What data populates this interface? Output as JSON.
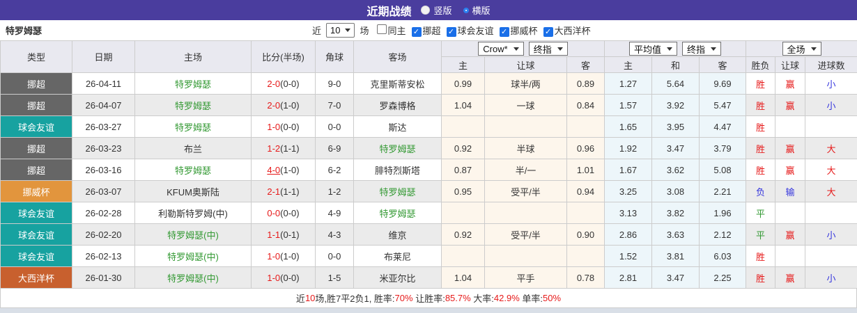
{
  "title_bar": {
    "title": "近期战绩",
    "radio_vertical": "竖版",
    "radio_horizontal": "横版",
    "selected": "横版"
  },
  "filter_bar": {
    "team": "特罗姆瑟",
    "near_label": "近",
    "matches_value": "10",
    "matches_label": "场",
    "checkboxes": [
      {
        "label": "同主",
        "checked": false
      },
      {
        "label": "挪超",
        "checked": true
      },
      {
        "label": "球会友谊",
        "checked": true
      },
      {
        "label": "挪威杯",
        "checked": true
      },
      {
        "label": "大西洋杯",
        "checked": true
      }
    ]
  },
  "colors": {
    "accent_purple": "#4a3d9e",
    "checkbox_blue": "#1a6fe8",
    "win_red": "#e61919",
    "lose_blue": "#3434dd",
    "draw_green": "#339933",
    "league_colors": {
      "挪超": "#666666",
      "球会友谊": "#17a2a0",
      "挪威杯": "#e2953d",
      "大西洋杯": "#c8602e"
    }
  },
  "table": {
    "left_headers": [
      "类型",
      "日期",
      "主场",
      "比分(半场)",
      "角球",
      "客场"
    ],
    "selects": {
      "crow": "Crow*",
      "crow_ref": "终指",
      "avg": "平均值",
      "avg_ref": "终指",
      "scope": "全场"
    },
    "group1_cols": [
      "主",
      "让球",
      "客"
    ],
    "group2_cols": [
      "主",
      "和",
      "客"
    ],
    "group3_cols": [
      "胜负",
      "让球",
      "进球数"
    ],
    "rows": [
      {
        "league": "挪超",
        "date": "26-04-11",
        "home": "特罗姆瑟",
        "home_highlight": true,
        "score": "2-0",
        "half": "(0-0)",
        "score_underline": false,
        "corners": "9-0",
        "away": "克里斯蒂安松",
        "away_highlight": false,
        "odds_home": "0.99",
        "odds_line": "球半/两",
        "odds_away": "0.89",
        "avg_home": "1.27",
        "avg_draw": "5.64",
        "avg_away": "9.69",
        "result": "胜",
        "handicap_result": "赢",
        "goals_result": "小"
      },
      {
        "league": "挪超",
        "date": "26-04-07",
        "home": "特罗姆瑟",
        "home_highlight": true,
        "score": "2-0",
        "half": "(1-0)",
        "score_underline": false,
        "corners": "7-0",
        "away": "罗森博格",
        "away_highlight": false,
        "odds_home": "1.04",
        "odds_line": "一球",
        "odds_away": "0.84",
        "avg_home": "1.57",
        "avg_draw": "3.92",
        "avg_away": "5.47",
        "result": "胜",
        "handicap_result": "赢",
        "goals_result": "小"
      },
      {
        "league": "球会友谊",
        "date": "26-03-27",
        "home": "特罗姆瑟",
        "home_highlight": true,
        "score": "1-0",
        "half": "(0-0)",
        "score_underline": false,
        "corners": "0-0",
        "away": "斯达",
        "away_highlight": false,
        "odds_home": "",
        "odds_line": "",
        "odds_away": "",
        "avg_home": "1.65",
        "avg_draw": "3.95",
        "avg_away": "4.47",
        "result": "胜",
        "handicap_result": "",
        "goals_result": ""
      },
      {
        "league": "挪超",
        "date": "26-03-23",
        "home": "布兰",
        "home_highlight": false,
        "score": "1-2",
        "half": "(1-1)",
        "score_underline": false,
        "corners": "6-9",
        "away": "特罗姆瑟",
        "away_highlight": true,
        "odds_home": "0.92",
        "odds_line": "半球",
        "odds_away": "0.96",
        "avg_home": "1.92",
        "avg_draw": "3.47",
        "avg_away": "3.79",
        "result": "胜",
        "handicap_result": "赢",
        "goals_result": "大"
      },
      {
        "league": "挪超",
        "date": "26-03-16",
        "home": "特罗姆瑟",
        "home_highlight": true,
        "score": "4-0",
        "half": "(1-0)",
        "score_underline": true,
        "corners": "6-2",
        "away": "腓特烈斯塔",
        "away_highlight": false,
        "odds_home": "0.87",
        "odds_line": "半/一",
        "odds_away": "1.01",
        "avg_home": "1.67",
        "avg_draw": "3.62",
        "avg_away": "5.08",
        "result": "胜",
        "handicap_result": "赢",
        "goals_result": "大"
      },
      {
        "league": "挪威杯",
        "date": "26-03-07",
        "home": "KFUM奥斯陆",
        "home_highlight": false,
        "score": "2-1",
        "half": "(1-1)",
        "score_underline": false,
        "corners": "1-2",
        "away": "特罗姆瑟",
        "away_highlight": true,
        "odds_home": "0.95",
        "odds_line": "受平/半",
        "odds_away": "0.94",
        "avg_home": "3.25",
        "avg_draw": "3.08",
        "avg_away": "2.21",
        "result": "负",
        "handicap_result": "输",
        "goals_result": "大"
      },
      {
        "league": "球会友谊",
        "date": "26-02-28",
        "home": "利勒斯特罗姆(中)",
        "home_highlight": false,
        "score": "0-0",
        "half": "(0-0)",
        "score_underline": false,
        "corners": "4-9",
        "away": "特罗姆瑟",
        "away_highlight": true,
        "odds_home": "",
        "odds_line": "",
        "odds_away": "",
        "avg_home": "3.13",
        "avg_draw": "3.82",
        "avg_away": "1.96",
        "result": "平",
        "handicap_result": "",
        "goals_result": ""
      },
      {
        "league": "球会友谊",
        "date": "26-02-20",
        "home": "特罗姆瑟(中)",
        "home_highlight": true,
        "score": "1-1",
        "half": "(0-1)",
        "score_underline": false,
        "corners": "4-3",
        "away": "维京",
        "away_highlight": false,
        "odds_home": "0.92",
        "odds_line": "受平/半",
        "odds_away": "0.90",
        "avg_home": "2.86",
        "avg_draw": "3.63",
        "avg_away": "2.12",
        "result": "平",
        "handicap_result": "赢",
        "goals_result": "小"
      },
      {
        "league": "球会友谊",
        "date": "26-02-13",
        "home": "特罗姆瑟(中)",
        "home_highlight": true,
        "score": "1-0",
        "half": "(1-0)",
        "score_underline": false,
        "corners": "0-0",
        "away": "布莱尼",
        "away_highlight": false,
        "odds_home": "",
        "odds_line": "",
        "odds_away": "",
        "avg_home": "1.52",
        "avg_draw": "3.81",
        "avg_away": "6.03",
        "result": "胜",
        "handicap_result": "",
        "goals_result": ""
      },
      {
        "league": "大西洋杯",
        "date": "26-01-30",
        "home": "特罗姆瑟(中)",
        "home_highlight": true,
        "score": "1-0",
        "half": "(0-0)",
        "score_underline": false,
        "corners": "1-5",
        "away": "米亚尔比",
        "away_highlight": false,
        "odds_home": "1.04",
        "odds_line": "平手",
        "odds_away": "0.78",
        "avg_home": "2.81",
        "avg_draw": "3.47",
        "avg_away": "2.25",
        "result": "胜",
        "handicap_result": "赢",
        "goals_result": "小"
      }
    ]
  },
  "footer": {
    "segments": [
      {
        "text": "近",
        "red": false
      },
      {
        "text": "10",
        "red": true
      },
      {
        "text": "场,胜7平2负1, 胜率:",
        "red": false
      },
      {
        "text": "70%",
        "red": true
      },
      {
        "text": " 让胜率:",
        "red": false
      },
      {
        "text": "85.7%",
        "red": true
      },
      {
        "text": " 大率:",
        "red": false
      },
      {
        "text": "42.9%",
        "red": true
      },
      {
        "text": " 单率:",
        "red": false
      },
      {
        "text": "50%",
        "red": true
      }
    ]
  }
}
